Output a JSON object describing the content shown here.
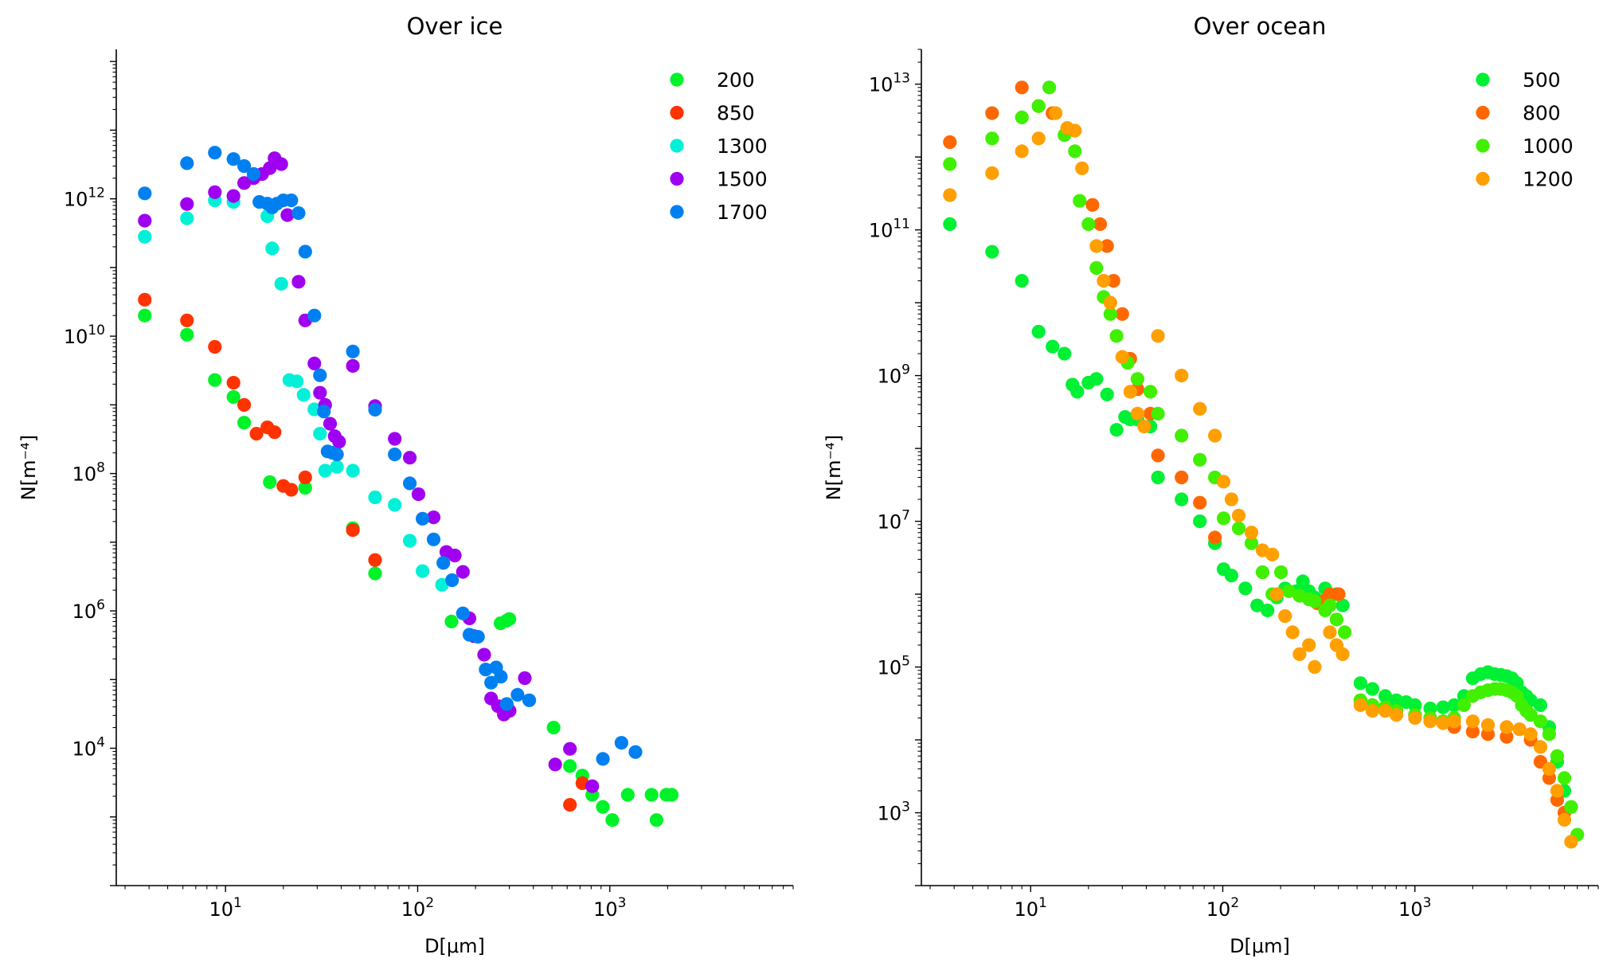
{
  "chart_data": [
    {
      "type": "scatter",
      "title": "Over ice",
      "xlabel": "D[μm]",
      "ylabel": "N[m⁻⁴]",
      "xscale": "log",
      "yscale": "log",
      "xlim": [
        2.7,
        9000
      ],
      "ylim": [
        100,
        150000000000000
      ],
      "xticks": [
        10,
        100,
        1000
      ],
      "yticks": [
        10000,
        1000000,
        100000000,
        10000000000,
        1000000000000
      ],
      "grid": false,
      "legend_position": "top-right",
      "series": [
        {
          "name": "200",
          "color": "#00f229",
          "x": [
            3.8,
            6.3,
            8.8,
            11,
            12.5,
            17,
            26,
            46,
            60,
            150,
            270,
            290,
            300,
            510,
            620,
            720,
            810,
            920,
            1030,
            1240,
            1650,
            1750,
            1970,
            2100
          ],
          "y": [
            20000000000,
            10500000000,
            2300000000,
            1300000000,
            550000000,
            75000000,
            62000000,
            16000000,
            3500000,
            700000,
            660000,
            720000,
            760000,
            20000,
            5500,
            4000,
            2100,
            1400,
            900,
            2100,
            2100,
            900,
            2100,
            2100
          ]
        },
        {
          "name": "850",
          "color": "#ff3300",
          "x": [
            3.8,
            6.3,
            8.8,
            11,
            12.5,
            14.5,
            16.5,
            18,
            20,
            22,
            26,
            46,
            60,
            620,
            720
          ],
          "y": [
            34000000000,
            17000000000,
            7000000000,
            2100000000,
            1000000000,
            380000000,
            470000000,
            400000000,
            66000000,
            58000000,
            88000000,
            15000000,
            5500000,
            1500,
            3100
          ]
        },
        {
          "name": "1300",
          "color": "#00f0d8",
          "x": [
            3.8,
            6.3,
            8.8,
            11,
            16.5,
            17.5,
            19.5,
            21.5,
            23.5,
            25.5,
            29,
            31,
            33,
            38,
            46,
            60,
            76,
            91,
            106,
            134
          ],
          "y": [
            280000000000,
            520000000000,
            950000000000,
            900000000000,
            560000000000,
            190000000000,
            58000000000,
            2300000000,
            2200000000,
            1400000000,
            860000000,
            380000000,
            110000000,
            125000000,
            110000000,
            45000000,
            35000000,
            10500000,
            3800000,
            2400000
          ]
        },
        {
          "name": "1500",
          "color": "#a000f0",
          "x": [
            3.8,
            6.3,
            8.8,
            11,
            12.5,
            14,
            15.5,
            17,
            18,
            19.5,
            21,
            24,
            26,
            29,
            31,
            33,
            35,
            37,
            39,
            46,
            60,
            76,
            91,
            101,
            121,
            141,
            156,
            172,
            186,
            196,
            222,
            241,
            262,
            281,
            301,
            361,
            520,
            620,
            810
          ],
          "y": [
            480000000000,
            840000000000,
            1250000000000,
            1100000000000,
            1700000000000,
            2000000000000,
            2300000000000,
            2800000000000,
            3900000000000,
            3200000000000,
            580000000000,
            62000000000,
            17000000000,
            4000000000,
            1500000000,
            1000000000,
            530000000,
            350000000,
            290000000,
            3700000000,
            960000000,
            320000000,
            170000000,
            50000000,
            23000000,
            7200000,
            6400000,
            3700000,
            780000,
            430000,
            230000,
            53000,
            41000,
            31000,
            35000,
            105000,
            5800,
            9800,
            2800
          ]
        },
        {
          "name": "1700",
          "color": "#0080f0",
          "x": [
            3.8,
            6.3,
            8.8,
            11,
            12.5,
            14,
            15,
            16.5,
            17.5,
            18.5,
            20,
            22,
            24,
            26,
            29,
            31,
            32.5,
            34,
            36,
            38,
            46,
            60,
            76,
            91,
            106,
            121,
            136,
            151,
            172,
            186,
            206,
            226,
            241,
            256,
            271,
            291,
            331,
            381,
            921,
            1150,
            1360
          ],
          "y": [
            1200000000000,
            3300000000000,
            4700000000000,
            3800000000000,
            3000000000000,
            2300000000000,
            900000000000,
            850000000000,
            750000000000,
            850000000000,
            950000000000,
            950000000000,
            620000000000,
            170000000000,
            20000000000,
            2700000000,
            800000000,
            210000000,
            200000000,
            190000000,
            6000000000,
            850000000,
            190000000,
            72000000,
            22000000,
            11000000,
            5000000,
            2800000,
            920000,
            450000,
            420000,
            140000,
            90000,
            150000,
            110000,
            44000,
            60000,
            50000,
            7000,
            12000,
            8800
          ]
        }
      ]
    },
    {
      "type": "scatter",
      "title": "Over ocean",
      "xlabel": "D[μm]",
      "ylabel": "N[m⁻⁴]",
      "xscale": "log",
      "yscale": "log",
      "xlim": [
        2.7,
        9000
      ],
      "ylim": [
        100,
        30000000000000
      ],
      "xticks": [
        10,
        100,
        1000
      ],
      "yticks": [
        1000,
        100000,
        10000000,
        1000000000,
        100000000000,
        10000000000000
      ],
      "grid": false,
      "legend_position": "top-right",
      "series": [
        {
          "name": "500",
          "color": "#00f034",
          "x": [
            3.8,
            6.3,
            9,
            11,
            13,
            15,
            16.5,
            17.5,
            20,
            22,
            25,
            28,
            31,
            33,
            36,
            42,
            46,
            61,
            76,
            91,
            101,
            111,
            131,
            151,
            171,
            191,
            211,
            241,
            261,
            281,
            301,
            341,
            391,
            421,
            521,
            601,
            701,
            801,
            901,
            1001,
            1201,
            1401,
            1601,
            1801,
            2001,
            2201,
            2401,
            2601,
            2801,
            3001,
            3201,
            3401,
            3601,
            3801,
            4001,
            4501,
            5001,
            5501,
            6001,
            6501
          ],
          "y": [
            120000000000,
            50000000000,
            20000000000,
            4000000000,
            2500000000,
            2000000000,
            750000000,
            600000000,
            800000000,
            900000000,
            550000000,
            180000000,
            270000000,
            250000000,
            250000000,
            200000000,
            40000000,
            20000000,
            10000000,
            5000000,
            2200000,
            1800000,
            1200000,
            700000,
            600000,
            900000,
            1200000,
            1100000,
            1500000,
            1100000,
            900000,
            1200000,
            1000000,
            700000,
            60000,
            50000,
            40000,
            35000,
            33000,
            30000,
            27000,
            28000,
            30000,
            40000,
            70000,
            80000,
            85000,
            80000,
            78000,
            75000,
            70000,
            60000,
            45000,
            40000,
            35000,
            30000,
            15000,
            5000,
            2000,
            1200
          ]
        },
        {
          "name": "800",
          "color": "#ff6800",
          "x": [
            3.8,
            6.3,
            9,
            11,
            13,
            21,
            23,
            25,
            27,
            30,
            33,
            36,
            42,
            46,
            61,
            76,
            91,
            311,
            331,
            361,
            401,
            521,
            601,
            701,
            801,
            1001,
            1201,
            1401,
            1601,
            2001,
            2401,
            3001,
            4001,
            4501,
            5001,
            5501,
            6001
          ],
          "y": [
            1600000000000,
            4000000000000,
            9000000000000,
            5000000000000,
            4000000000000,
            220000000000,
            120000000000,
            60000000000,
            20000000000,
            7000000000,
            1700000000,
            650000000,
            300000000,
            80000000,
            40000000,
            18000000,
            6000000,
            750000,
            800000,
            1000000,
            1000000,
            35000,
            30000,
            28000,
            25000,
            22000,
            20000,
            18000,
            15000,
            13000,
            12000,
            11000,
            10000,
            5000,
            3000,
            1500,
            1000
          ]
        },
        {
          "name": "1000",
          "color": "#40f000",
          "x": [
            3.8,
            6.3,
            9,
            11,
            12.5,
            15,
            17,
            18,
            20,
            22,
            24,
            26,
            28,
            32,
            36,
            42,
            46,
            61,
            76,
            91,
            101,
            121,
            141,
            161,
            181,
            201,
            221,
            251,
            281,
            301,
            341,
            361,
            391,
            431,
            521,
            601,
            701,
            801,
            1001,
            1201,
            1401,
            1601,
            1801,
            2001,
            2201,
            2401,
            2601,
            2801,
            3001,
            3201,
            3401,
            3601,
            3801,
            4001,
            4501,
            5001,
            5501,
            6001,
            6501,
            7001
          ],
          "y": [
            800000000000,
            1800000000000,
            3500000000000,
            5000000000000,
            9000000000000,
            2000000000000,
            1200000000000,
            250000000000,
            120000000000,
            30000000000,
            12000000000,
            7000000000,
            3500000000,
            1500000000,
            900000000,
            600000000,
            300000000,
            150000000,
            70000000,
            40000000,
            11000000,
            8000000,
            5000000,
            2000000,
            1000000,
            2000000,
            1100000,
            950000,
            850000,
            800000,
            600000,
            700000,
            450000,
            300000,
            35000,
            30000,
            28000,
            25000,
            22000,
            20000,
            18000,
            20000,
            30000,
            40000,
            45000,
            48000,
            50000,
            50000,
            48000,
            45000,
            40000,
            30000,
            25000,
            22000,
            18000,
            12000,
            6000,
            3000,
            1200,
            500
          ]
        },
        {
          "name": "1200",
          "color": "#ff9f00",
          "x": [
            3.8,
            6.3,
            9,
            11,
            13.5,
            15.5,
            17,
            18.5,
            22,
            24,
            26,
            30,
            33,
            36,
            39,
            46,
            61,
            76,
            91,
            101,
            111,
            121,
            141,
            161,
            181,
            191,
            211,
            231,
            251,
            281,
            301,
            361,
            391,
            421,
            521,
            601,
            701,
            801,
            1001,
            1201,
            1401,
            1601,
            2001,
            2401,
            3001,
            3501,
            4001,
            4501,
            5001,
            5501,
            6001,
            6501
          ],
          "y": [
            300000000000,
            600000000000,
            1200000000000,
            1800000000000,
            4000000000000,
            2500000000000,
            2300000000000,
            700000000000,
            60000000000,
            20000000000,
            10000000000,
            1800000000,
            600000000,
            300000000,
            200000000,
            3500000000,
            1000000000,
            350000000,
            150000000,
            35000000,
            20000000,
            12000000,
            7000000,
            4000000,
            3500000,
            1000000,
            500000,
            300000,
            150000,
            200000,
            100000,
            300000,
            200000,
            150000,
            30000,
            25000,
            25000,
            22000,
            20000,
            18000,
            17000,
            18000,
            18000,
            16000,
            15000,
            14000,
            12000,
            8000,
            4000,
            2000,
            800,
            400
          ]
        }
      ]
    }
  ]
}
